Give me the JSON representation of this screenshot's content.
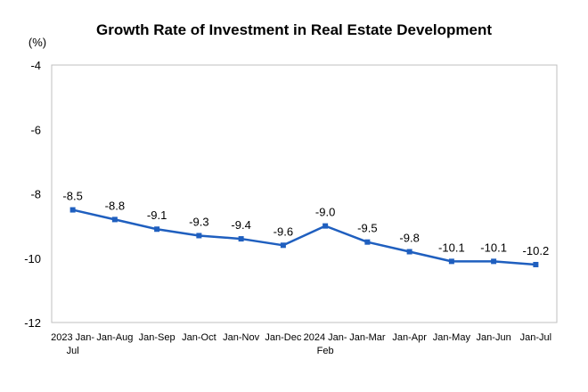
{
  "chart_data": {
    "type": "line",
    "title": "Growth Rate of Investment in Real Estate Development",
    "ylabel": "(%)",
    "xlabel": "",
    "categories": [
      [
        "2023 Jan-",
        "Jul"
      ],
      [
        "Jan-Aug"
      ],
      [
        "Jan-Sep"
      ],
      [
        "Jan-Oct"
      ],
      [
        "Jan-Nov"
      ],
      [
        "Jan-Dec"
      ],
      [
        "2024 Jan-",
        "Feb"
      ],
      [
        "Jan-Mar"
      ],
      [
        "Jan-Apr"
      ],
      [
        "Jan-May"
      ],
      [
        "Jan-Jun"
      ],
      [
        "Jan-Jul"
      ]
    ],
    "series": [
      {
        "values": [
          -8.5,
          -8.8,
          -9.1,
          -9.3,
          -9.4,
          -9.6,
          -9.0,
          -9.5,
          -9.8,
          -10.1,
          -10.1,
          -10.2
        ],
        "labels": [
          "-8.5",
          "-8.8",
          "-9.1",
          "-9.3",
          "-9.4",
          "-9.6",
          "-9.0",
          "-9.5",
          "-9.8",
          "-10.1",
          "-10.1",
          "-10.2"
        ],
        "color": "#1f5fbf"
      }
    ],
    "ylim": [
      -12,
      -4
    ],
    "yticks": [
      "-4",
      "-6",
      "-8",
      "-10",
      "-12"
    ],
    "ytick_values": [
      -4,
      -6,
      -8,
      -10,
      -12
    ],
    "grid": false,
    "legend": "none"
  }
}
